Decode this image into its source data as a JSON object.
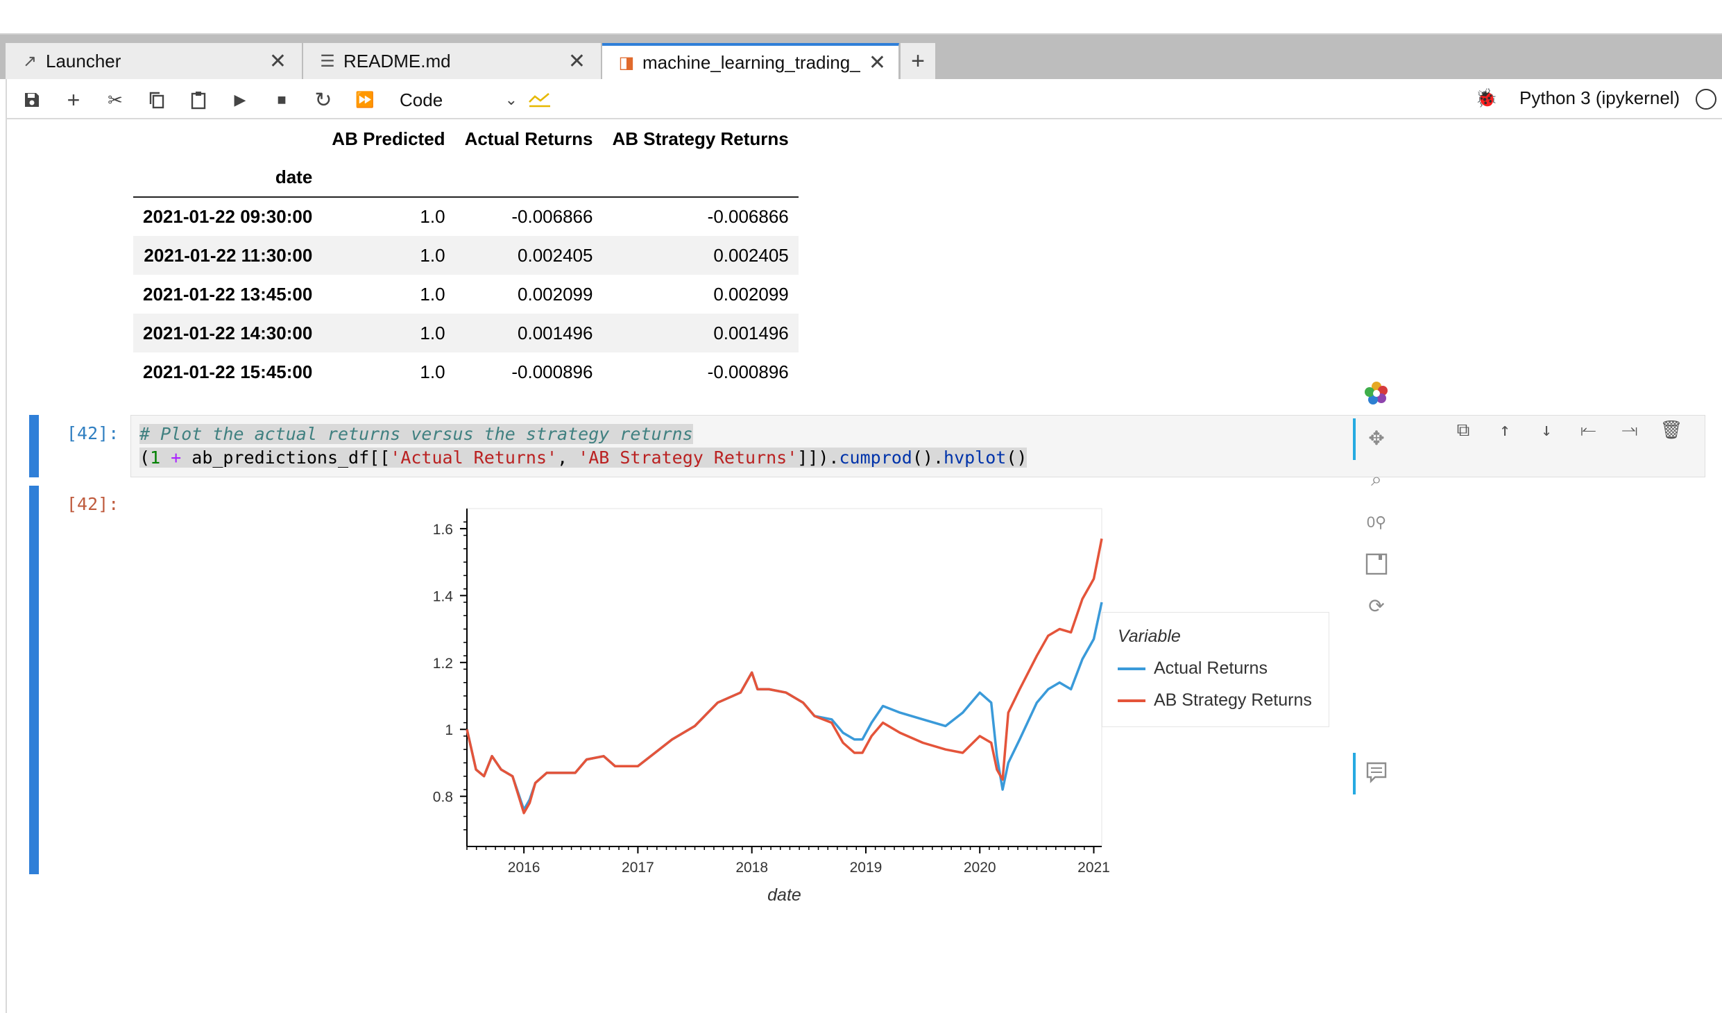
{
  "tabs": [
    {
      "label": "Launcher",
      "icon": "external-link-icon"
    },
    {
      "label": "README.md",
      "icon": "text-file-icon"
    },
    {
      "label": "machine_learning_trading_",
      "icon": "notebook-icon"
    }
  ],
  "toolbar": {
    "cell_type": "Code",
    "kernel": "Python 3 (ipykernel)"
  },
  "dataframe": {
    "columns": [
      "AB Predicted",
      "Actual Returns",
      "AB Strategy Returns"
    ],
    "index_name": "date",
    "rows": [
      {
        "date": "2021-01-22 09:30:00",
        "pred": "1.0",
        "actual": "-0.006866",
        "strategy": "-0.006866"
      },
      {
        "date": "2021-01-22 11:30:00",
        "pred": "1.0",
        "actual": "0.002405",
        "strategy": "0.002405"
      },
      {
        "date": "2021-01-22 13:45:00",
        "pred": "1.0",
        "actual": "0.002099",
        "strategy": "0.002099"
      },
      {
        "date": "2021-01-22 14:30:00",
        "pred": "1.0",
        "actual": "0.001496",
        "strategy": "0.001496"
      },
      {
        "date": "2021-01-22 15:45:00",
        "pred": "1.0",
        "actual": "-0.000896",
        "strategy": "-0.000896"
      }
    ]
  },
  "cell": {
    "in_prompt": "[42]:",
    "out_prompt": "[42]:",
    "code": {
      "comment": "# Plot the actual returns versus the strategy returns",
      "p_open": "(",
      "num": "1",
      "plus": " + ",
      "df_name": "ab_predictions_df[[",
      "s1": "'Actual Returns'",
      "comma": ", ",
      "s2": "'AB Strategy Returns'",
      "close": "]]).",
      "fn1": "cumprod",
      "mid": "().",
      "fn2": "hvplot",
      "end": "()"
    }
  },
  "chart_data": {
    "type": "line",
    "xlabel": "date",
    "ylabel": "",
    "x_ticks": [
      "2016",
      "2017",
      "2018",
      "2019",
      "2020",
      "2021"
    ],
    "y_ticks": [
      "0.8",
      "1",
      "1.2",
      "1.4",
      "1.6"
    ],
    "xlim": [
      2015.5,
      2021.07
    ],
    "ylim": [
      0.65,
      1.66
    ],
    "legend_title": "Variable",
    "legend_position": "right",
    "series": [
      {
        "name": "Actual Returns",
        "color": "#3a9ad9",
        "x": [
          2015.5,
          2015.58,
          2015.65,
          2015.72,
          2015.8,
          2015.9,
          2016.0,
          2016.05,
          2016.1,
          2016.2,
          2016.3,
          2016.45,
          2016.55,
          2016.7,
          2016.8,
          2016.9,
          2017.0,
          2017.15,
          2017.3,
          2017.5,
          2017.7,
          2017.9,
          2018.0,
          2018.05,
          2018.15,
          2018.3,
          2018.45,
          2018.55,
          2018.7,
          2018.8,
          2018.9,
          2018.97,
          2019.05,
          2019.15,
          2019.3,
          2019.5,
          2019.7,
          2019.85,
          2020.0,
          2020.1,
          2020.15,
          2020.2,
          2020.25,
          2020.35,
          2020.5,
          2020.6,
          2020.7,
          2020.8,
          2020.9,
          2021.0,
          2021.07
        ],
        "y": [
          1.0,
          0.88,
          0.86,
          0.92,
          0.88,
          0.86,
          0.76,
          0.79,
          0.84,
          0.87,
          0.87,
          0.87,
          0.91,
          0.92,
          0.89,
          0.89,
          0.89,
          0.93,
          0.97,
          1.01,
          1.08,
          1.11,
          1.17,
          1.12,
          1.12,
          1.11,
          1.08,
          1.04,
          1.03,
          0.99,
          0.97,
          0.97,
          1.02,
          1.07,
          1.05,
          1.03,
          1.01,
          1.05,
          1.11,
          1.08,
          0.92,
          0.82,
          0.9,
          0.97,
          1.08,
          1.12,
          1.14,
          1.12,
          1.21,
          1.27,
          1.38
        ]
      },
      {
        "name": "AB Strategy Returns",
        "color": "#e4543a",
        "x": [
          2015.5,
          2015.58,
          2015.65,
          2015.72,
          2015.8,
          2015.9,
          2016.0,
          2016.05,
          2016.1,
          2016.2,
          2016.3,
          2016.45,
          2016.55,
          2016.7,
          2016.8,
          2016.9,
          2017.0,
          2017.15,
          2017.3,
          2017.5,
          2017.7,
          2017.9,
          2018.0,
          2018.05,
          2018.15,
          2018.3,
          2018.45,
          2018.55,
          2018.7,
          2018.8,
          2018.9,
          2018.97,
          2019.05,
          2019.15,
          2019.3,
          2019.5,
          2019.7,
          2019.85,
          2020.0,
          2020.1,
          2020.15,
          2020.2,
          2020.25,
          2020.35,
          2020.5,
          2020.6,
          2020.7,
          2020.8,
          2020.9,
          2021.0,
          2021.07
        ],
        "y": [
          1.0,
          0.88,
          0.86,
          0.92,
          0.88,
          0.86,
          0.75,
          0.78,
          0.84,
          0.87,
          0.87,
          0.87,
          0.91,
          0.92,
          0.89,
          0.89,
          0.89,
          0.93,
          0.97,
          1.01,
          1.08,
          1.11,
          1.17,
          1.12,
          1.12,
          1.11,
          1.08,
          1.04,
          1.02,
          0.96,
          0.93,
          0.93,
          0.98,
          1.02,
          0.99,
          0.96,
          0.94,
          0.93,
          0.98,
          0.96,
          0.88,
          0.85,
          1.05,
          1.12,
          1.22,
          1.28,
          1.3,
          1.29,
          1.39,
          1.45,
          1.57
        ]
      }
    ]
  }
}
